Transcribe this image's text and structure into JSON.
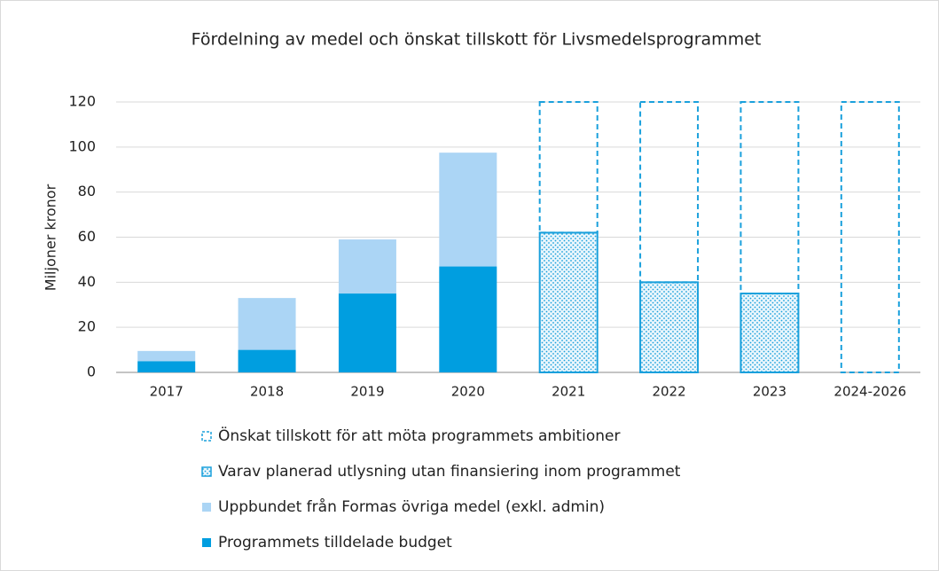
{
  "chart_data": {
    "type": "stacked_bar",
    "title": "Fördelning av medel och önskat tillskott för Livsmedelsprogrammet",
    "y_label": "Miljoner kronor",
    "categories": [
      "2017",
      "2018",
      "2019",
      "2020",
      "2021",
      "2022",
      "2023",
      "2024-2026"
    ],
    "series": [
      {
        "name": "Programmets tilldelade budget",
        "color": "#009ee0",
        "fill": "solid",
        "values": [
          5,
          10,
          35,
          47,
          0,
          0,
          0,
          0
        ]
      },
      {
        "name": "Uppbundet från Formas övriga medel (exkl. admin)",
        "color": "#abd5f5",
        "fill": "solid",
        "values": [
          4.5,
          23,
          24,
          50.5,
          0,
          0,
          0,
          0
        ]
      },
      {
        "name": "Varav planerad utlysning utan finansiering inom programmet",
        "color": "#1aa0dc",
        "fill": "dots",
        "values": [
          0,
          0,
          0,
          0,
          62,
          40,
          35,
          0
        ]
      },
      {
        "name": "Önskat tillskott för att möta programmets ambitioner",
        "color": "#1aa0dc",
        "fill": "dashed-outline",
        "values": [
          0,
          0,
          0,
          0,
          58,
          80,
          85,
          120
        ]
      }
    ],
    "ylim": [
      0,
      120
    ],
    "yticks": [
      0,
      20,
      40,
      60,
      80,
      100,
      120
    ],
    "grid": true,
    "legend": "bottom"
  }
}
